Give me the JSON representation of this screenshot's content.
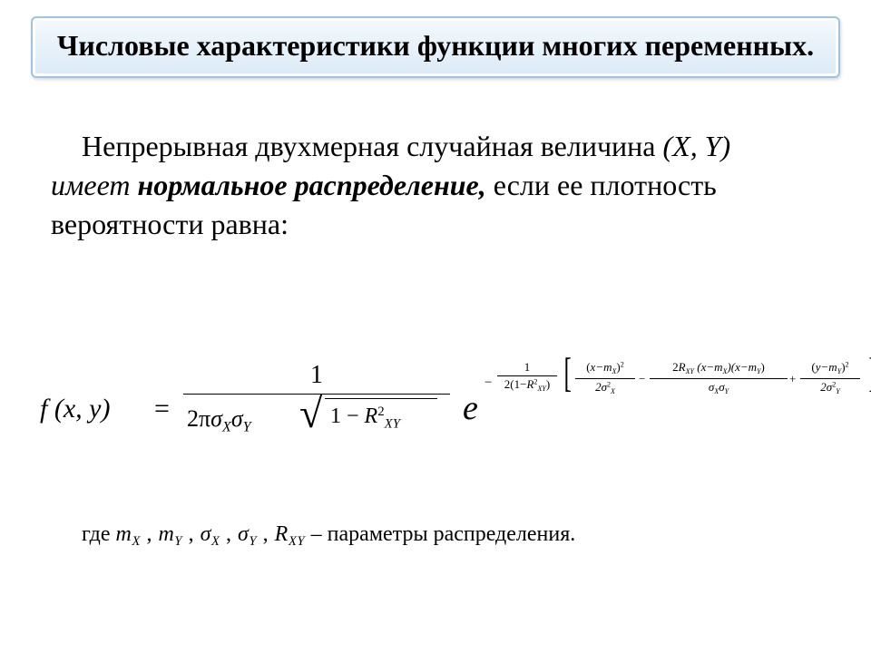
{
  "title": "Числовые характеристики функции многих переменных.",
  "body": {
    "part1": "Непрерывная двухмерная случайная величина ",
    "xy": "(X, Y)",
    "imeet": " имеет ",
    "normal": "нормальное распределение,",
    "part2": " если ее плотность вероятности равна:"
  },
  "formula": {
    "lhs": "f (x, y)",
    "eq": "=",
    "frac1": {
      "num": "1"
    },
    "den": {
      "two_pi": "2π",
      "sigmaX": "σ",
      "subX": "X",
      "sigmaY": "σ",
      "subY": "Y",
      "one_minus": "1 − ",
      "R": "R",
      "R_sup": "2",
      "R_sub": "XY"
    },
    "e": "e",
    "exp": {
      "minus": "−",
      "A_num": "1",
      "A_den_pre": "2(1−",
      "A_den_R": "R",
      "A_den_Rsup": "2",
      "A_den_Rsub": "XY",
      "A_den_post": ")",
      "B_num_pre": "(",
      "B_num_x": "x−m",
      "B_num_xsub": "X",
      "B_num_post": ")",
      "B_num_sq": "2",
      "B_den_pre": "2σ",
      "B_den_sup": "2",
      "B_den_sub": "X",
      "minus2": "−",
      "C_num_pre": "2",
      "C_num_R": "R",
      "C_num_Rsub": "XY",
      "C_num_mid1": "(x−m",
      "C_num_sub1": "X",
      "C_num_mid2": ")(x−m",
      "C_num_sub2": "Y",
      "C_num_post": ")",
      "C_den_sigX": "σ",
      "C_den_subX": "X",
      "C_den_sigY": "σ",
      "C_den_subY": "Y",
      "plus": "+",
      "D_num_pre": "(",
      "D_num_y": "y−m",
      "D_num_ysub": "Y",
      "D_num_post": ")",
      "D_num_sq": "2",
      "D_den_pre": "2σ",
      "D_den_sup": "2",
      "D_den_sub": "Y",
      "comma": ","
    }
  },
  "where": {
    "gde": "где  ",
    "m": "m",
    "subX": "X",
    "c1": " , ",
    "subY": "Y",
    "sigma": "σ",
    "R": "R",
    "subXY": "XY",
    "tail": "  – параметры распределения."
  },
  "colors": {
    "title_bg_top": "#f4f9fd",
    "title_bg_bottom": "#dbeaf6",
    "title_border": "#9ec4e3",
    "text": "#000000",
    "background": "#ffffff"
  },
  "typography": {
    "title_fontsize": 32,
    "body_fontsize": 32,
    "formula_fontsize": 28,
    "where_fontsize": 24,
    "font_family": "Times New Roman"
  }
}
